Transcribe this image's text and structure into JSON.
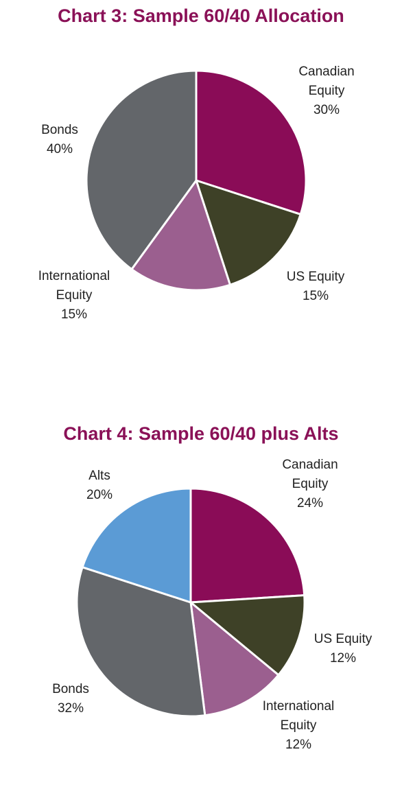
{
  "chart_data": [
    {
      "type": "pie",
      "title": "Chart 3: Sample 60/40 Allocation",
      "slices": [
        {
          "name": "Canadian Equity",
          "label_lines": [
            "Canadian",
            "Equity"
          ],
          "value": 30,
          "value_label": "30%",
          "color": "#8a0c57"
        },
        {
          "name": "US Equity",
          "label_lines": [
            "US Equity"
          ],
          "value": 15,
          "value_label": "15%",
          "color": "#3e4127"
        },
        {
          "name": "International Equity",
          "label_lines": [
            "International",
            "Equity"
          ],
          "value": 15,
          "value_label": "15%",
          "color": "#9b5f8f"
        },
        {
          "name": "Bonds",
          "label_lines": [
            "Bonds"
          ],
          "value": 40,
          "value_label": "40%",
          "color": "#63666a"
        }
      ]
    },
    {
      "type": "pie",
      "title": "Chart 4: Sample 60/40 plus Alts",
      "slices": [
        {
          "name": "Canadian Equity",
          "label_lines": [
            "Canadian",
            "Equity"
          ],
          "value": 24,
          "value_label": "24%",
          "color": "#8a0c57"
        },
        {
          "name": "US Equity",
          "label_lines": [
            "US Equity"
          ],
          "value": 12,
          "value_label": "12%",
          "color": "#3e4127"
        },
        {
          "name": "International Equity",
          "label_lines": [
            "International",
            "Equity"
          ],
          "value": 12,
          "value_label": "12%",
          "color": "#9b5f8f"
        },
        {
          "name": "Bonds",
          "label_lines": [
            "Bonds"
          ],
          "value": 32,
          "value_label": "32%",
          "color": "#63666a"
        },
        {
          "name": "Alts",
          "label_lines": [
            "Alts"
          ],
          "value": 20,
          "value_label": "20%",
          "color": "#5b9bd5"
        }
      ]
    }
  ],
  "colors": {
    "title": "#8a1157",
    "slice_border": "#ffffff"
  }
}
